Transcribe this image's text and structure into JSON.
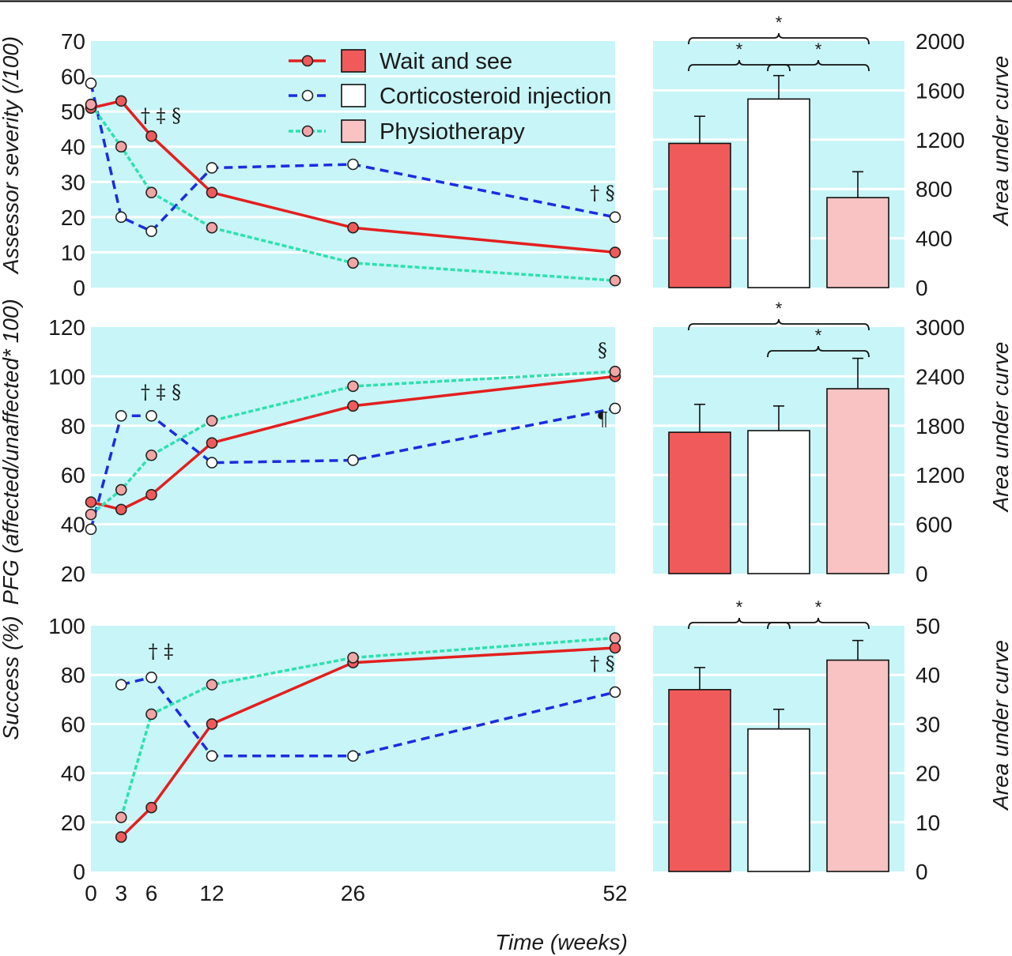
{
  "colors": {
    "panel_bg": "#c8f5f7",
    "grid": "#ffffff",
    "wait_line": "#e41f1f",
    "wait_fill": "#f05a5a",
    "cortico_line": "#1a2ee0",
    "cortico_fill": "#ffffff",
    "physio_line": "#2ee0b0",
    "physio_fill": "#f3a5a5",
    "physio_bar": "#f9c3c3",
    "ink": "#1a1a1a"
  },
  "xlabel": "Time (weeks)",
  "x": [
    0,
    3,
    6,
    12,
    26,
    52
  ],
  "x_tick_labels": [
    "0",
    "3",
    "6",
    "12",
    "26",
    "52"
  ],
  "legend": [
    {
      "name": "Wait and see",
      "key": "wait"
    },
    {
      "name": "Corticosteroid injection",
      "key": "cortico"
    },
    {
      "name": "Physiotherapy",
      "key": "physio"
    }
  ],
  "chart_data": [
    {
      "type": "line",
      "panel": "line-1",
      "ylabel": "Assessor severity (/100)",
      "ylim": [
        0,
        70
      ],
      "y_ticks": [
        "0",
        "10",
        "20",
        "30",
        "40",
        "50",
        "60",
        "70"
      ],
      "y_tick_values": [
        0,
        10,
        20,
        30,
        40,
        50,
        60,
        70
      ],
      "series": [
        {
          "name": "Wait and see",
          "key": "wait",
          "x": [
            0,
            3,
            6,
            12,
            26,
            52
          ],
          "values": [
            51,
            53,
            43,
            27,
            17,
            10
          ]
        },
        {
          "name": "Corticosteroid injection",
          "key": "cortico",
          "x": [
            0,
            3,
            6,
            12,
            26,
            52
          ],
          "values": [
            58,
            20,
            16,
            34,
            35,
            20
          ]
        },
        {
          "name": "Physiotherapy",
          "key": "physio",
          "x": [
            0,
            3,
            6,
            12,
            26,
            52
          ],
          "values": [
            52,
            40,
            27,
            17,
            7,
            2
          ]
        }
      ],
      "annotations": [
        {
          "text": "† ‡ §",
          "x": 6,
          "y": 47
        },
        {
          "text": "† §",
          "x": 52,
          "y": 25
        }
      ]
    },
    {
      "type": "bar",
      "panel": "bar-1",
      "ylabel": "Area under curve",
      "categories": [
        "Wait and see",
        "Corticosteroid injection",
        "Physiotherapy"
      ],
      "keys": [
        "wait",
        "cortico",
        "physio"
      ],
      "values": [
        1170,
        1530,
        730
      ],
      "errors": [
        220,
        190,
        210
      ],
      "ylim": [
        0,
        2000
      ],
      "y_ticks": [
        "0",
        "400",
        "800",
        "1200",
        "1600",
        "2000"
      ],
      "y_tick_values": [
        0,
        400,
        800,
        1200,
        1600,
        2000
      ],
      "significance": [
        {
          "from": 0,
          "to": 2,
          "label": "*",
          "level": 0
        },
        {
          "from": 0,
          "to": 1,
          "label": "*",
          "level": 1
        },
        {
          "from": 1,
          "to": 2,
          "label": "*",
          "level": 1
        }
      ]
    },
    {
      "type": "line",
      "panel": "line-2",
      "ylabel": "PFG (affected/unaffected* 100)",
      "ylim": [
        20,
        120
      ],
      "y_ticks": [
        "20",
        "40",
        "60",
        "80",
        "100",
        "120"
      ],
      "y_tick_values": [
        20,
        40,
        60,
        80,
        100,
        120
      ],
      "series": [
        {
          "name": "Wait and see",
          "key": "wait",
          "x": [
            0,
            3,
            6,
            12,
            26,
            52
          ],
          "values": [
            49,
            46,
            52,
            73,
            88,
            100
          ]
        },
        {
          "name": "Corticosteroid injection",
          "key": "cortico",
          "x": [
            0,
            3,
            6,
            12,
            26,
            52
          ],
          "values": [
            38,
            84,
            84,
            65,
            66,
            87
          ]
        },
        {
          "name": "Physiotherapy",
          "key": "physio",
          "x": [
            0,
            3,
            6,
            12,
            26,
            52
          ],
          "values": [
            44,
            54,
            68,
            82,
            96,
            102
          ]
        }
      ],
      "annotations": [
        {
          "text": "† ‡ §",
          "x": 6,
          "y": 91
        },
        {
          "text": "§",
          "x": 52,
          "y": 108
        },
        {
          "text": "¶",
          "x": 52,
          "y": 80
        }
      ]
    },
    {
      "type": "bar",
      "panel": "bar-2",
      "ylabel": "Area under curve",
      "categories": [
        "Wait and see",
        "Corticosteroid injection",
        "Physiotherapy"
      ],
      "keys": [
        "wait",
        "cortico",
        "physio"
      ],
      "values": [
        1720,
        1740,
        2250
      ],
      "errors": [
        340,
        300,
        370
      ],
      "ylim": [
        0,
        3000
      ],
      "y_ticks": [
        "0",
        "600",
        "1200",
        "1800",
        "2400",
        "3000"
      ],
      "y_tick_values": [
        0,
        600,
        1200,
        1800,
        2400,
        3000
      ],
      "significance": [
        {
          "from": 0,
          "to": 2,
          "label": "*",
          "level": 0
        },
        {
          "from": 1,
          "to": 2,
          "label": "*",
          "level": 1
        }
      ]
    },
    {
      "type": "line",
      "panel": "line-3",
      "ylabel": "Success (%)",
      "ylim": [
        0,
        100
      ],
      "y_ticks": [
        "0",
        "20",
        "40",
        "60",
        "80",
        "100"
      ],
      "y_tick_values": [
        0,
        20,
        40,
        60,
        80,
        100
      ],
      "series": [
        {
          "name": "Wait and see",
          "key": "wait",
          "x": [
            3,
            6,
            12,
            26,
            52
          ],
          "values": [
            14,
            26,
            60,
            85,
            91
          ]
        },
        {
          "name": "Corticosteroid injection",
          "key": "cortico",
          "x": [
            3,
            6,
            12,
            26,
            52
          ],
          "values": [
            76,
            79,
            47,
            47,
            73
          ]
        },
        {
          "name": "Physiotherapy",
          "key": "physio",
          "x": [
            3,
            6,
            12,
            26,
            52
          ],
          "values": [
            22,
            64,
            76,
            87,
            95
          ]
        }
      ],
      "annotations": [
        {
          "text": "† ‡",
          "x": 6,
          "y": 87
        },
        {
          "text": "† §",
          "x": 52,
          "y": 82
        }
      ]
    },
    {
      "type": "bar",
      "panel": "bar-3",
      "ylabel": "Area under curve",
      "categories": [
        "Wait and see",
        "Corticosteroid injection",
        "Physiotherapy"
      ],
      "keys": [
        "wait",
        "cortico",
        "physio"
      ],
      "values": [
        37,
        29,
        43
      ],
      "errors": [
        4.5,
        4,
        4
      ],
      "ylim": [
        0,
        50
      ],
      "y_ticks": [
        "0",
        "10",
        "20",
        "30",
        "40",
        "50"
      ],
      "y_tick_values": [
        0,
        10,
        20,
        30,
        40,
        50
      ],
      "significance": [
        {
          "from": 0,
          "to": 1,
          "label": "*",
          "level": 0
        },
        {
          "from": 1,
          "to": 2,
          "label": "*",
          "level": 0
        }
      ]
    }
  ]
}
